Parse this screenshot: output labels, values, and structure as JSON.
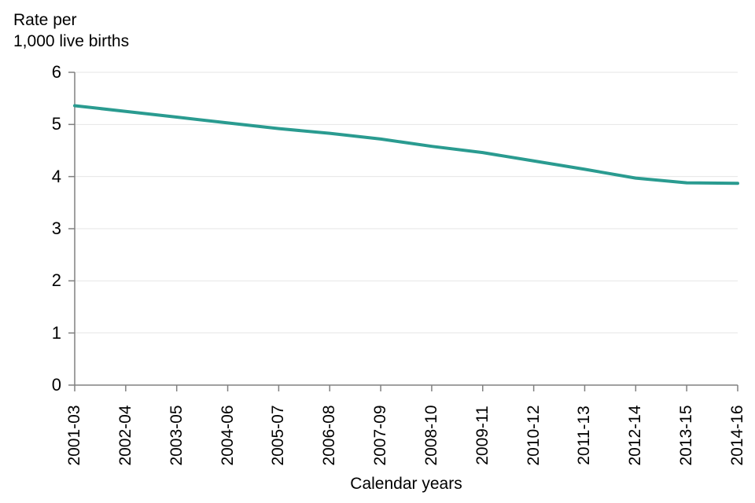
{
  "chart_data": {
    "type": "line",
    "y_axis_title": "Rate per\n1,000 live births",
    "x_axis_title": "Calendar years",
    "categories": [
      "2001-03",
      "2002-04",
      "2003-05",
      "2004-06",
      "2005-07",
      "2006-08",
      "2007-09",
      "2008-10",
      "2009-11",
      "2010-12",
      "2011-13",
      "2012-14",
      "2013-15",
      "2014-16"
    ],
    "series": [
      {
        "name": "Rate per 1,000 live births",
        "values": [
          5.36,
          5.25,
          5.14,
          5.03,
          4.92,
          4.83,
          4.72,
          4.58,
          4.46,
          4.3,
          4.14,
          3.97,
          3.88,
          3.87
        ]
      }
    ],
    "ylim": [
      0,
      6
    ],
    "yticks": [
      0,
      1,
      2,
      3,
      4,
      5,
      6
    ],
    "grid": "horizontal",
    "legend": "none",
    "colors": {
      "line": "#2a9b90",
      "grid": "#e6e6e6",
      "axis": "#808080",
      "text": "#000000"
    }
  }
}
